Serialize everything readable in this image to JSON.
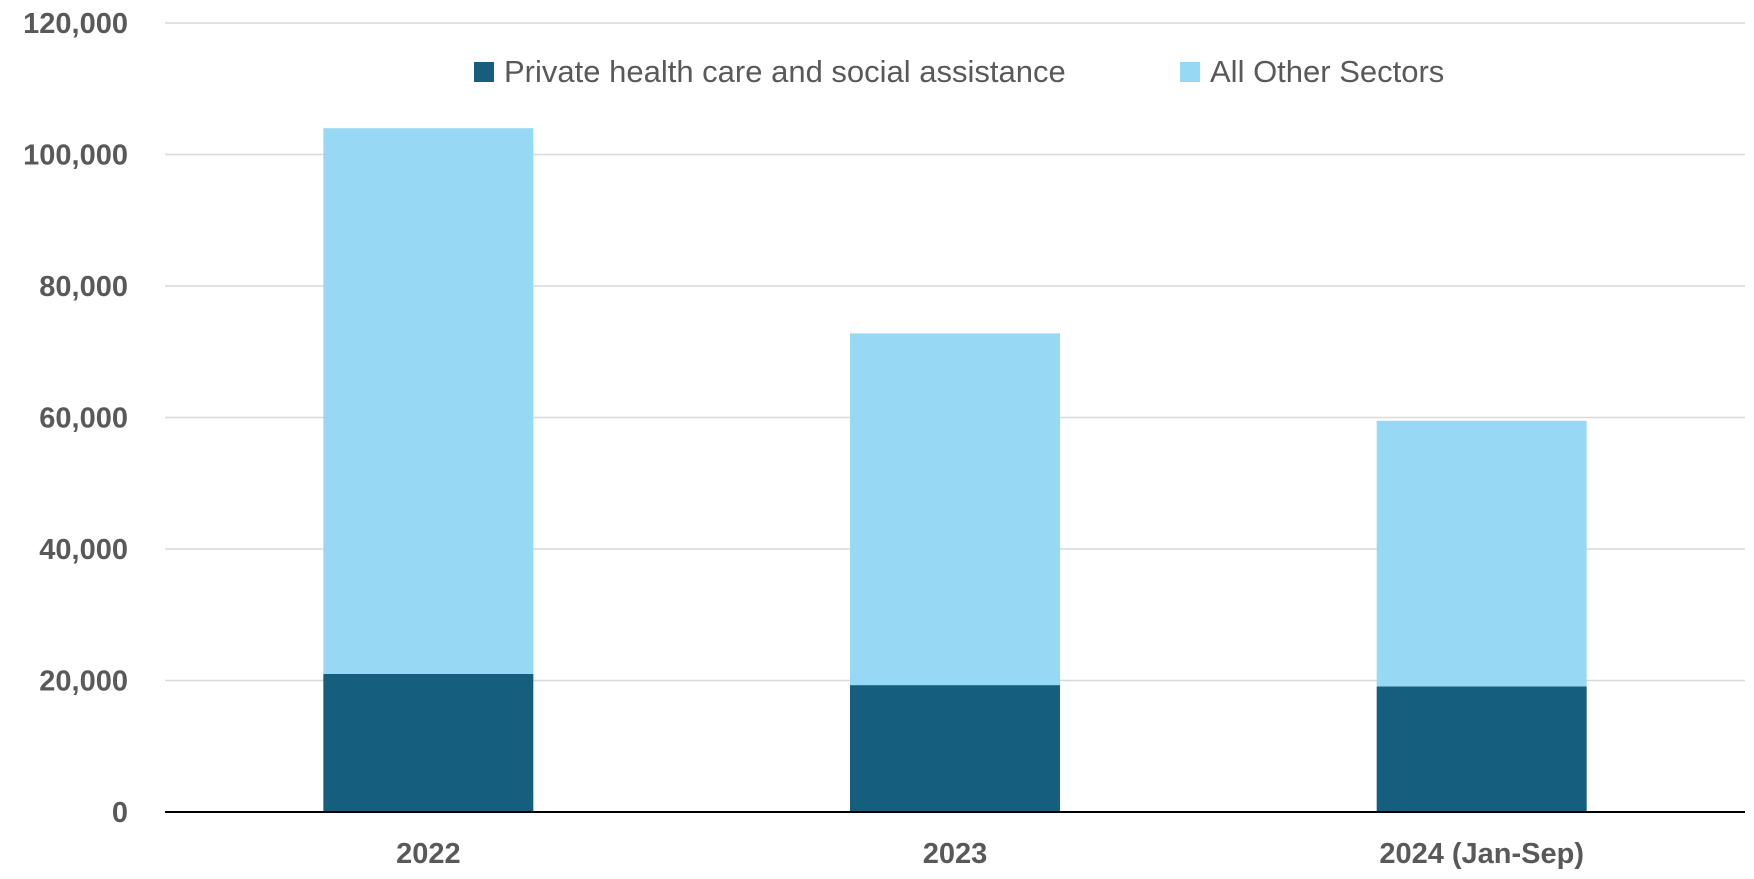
{
  "chart_data": {
    "type": "bar",
    "stacked": true,
    "categories": [
      "2022",
      "2023",
      "2024 (Jan-Sep)"
    ],
    "series": [
      {
        "name": "Private health care and social assistance",
        "values": [
          21000,
          19300,
          19100
        ],
        "color": "#155E7E"
      },
      {
        "name": "All Other Sectors",
        "values": [
          83000,
          53500,
          40400
        ],
        "color": "#97D9F5"
      }
    ],
    "title": "",
    "xlabel": "",
    "ylabel": "",
    "ylim": [
      0,
      120000
    ],
    "yticks": [
      0,
      20000,
      40000,
      60000,
      80000,
      100000,
      120000
    ],
    "ytick_labels": [
      "0",
      "20,000",
      "40,000",
      "60,000",
      "80,000",
      "100,000",
      "120,000"
    ],
    "grid": true,
    "legend": "top-center",
    "colors": {
      "gridline": "#D9D9D9",
      "axis": "#000000",
      "text": "#595959"
    }
  }
}
